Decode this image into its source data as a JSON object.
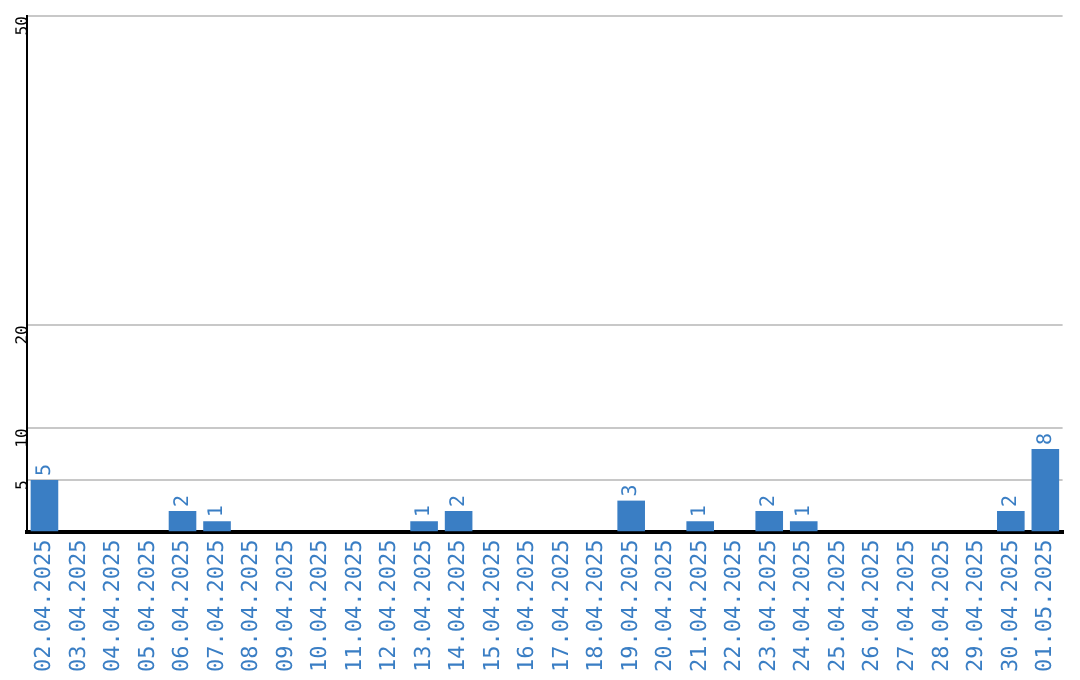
{
  "chart_data": {
    "type": "bar",
    "categories": [
      "02.04.2025",
      "03.04.2025",
      "04.04.2025",
      "05.04.2025",
      "06.04.2025",
      "07.04.2025",
      "08.04.2025",
      "09.04.2025",
      "10.04.2025",
      "11.04.2025",
      "12.04.2025",
      "13.04.2025",
      "14.04.2025",
      "15.04.2025",
      "16.04.2025",
      "17.04.2025",
      "18.04.2025",
      "19.04.2025",
      "20.04.2025",
      "21.04.2025",
      "22.04.2025",
      "23.04.2025",
      "24.04.2025",
      "25.04.2025",
      "26.04.2025",
      "27.04.2025",
      "28.04.2025",
      "29.04.2025",
      "30.04.2025",
      "01.05.2025"
    ],
    "values": [
      5,
      0,
      0,
      0,
      2,
      1,
      0,
      0,
      0,
      0,
      0,
      1,
      2,
      0,
      0,
      0,
      0,
      3,
      0,
      1,
      0,
      2,
      1,
      0,
      0,
      0,
      0,
      0,
      2,
      8
    ],
    "value_labels": [
      "5",
      null,
      null,
      null,
      "2",
      "1",
      null,
      null,
      null,
      null,
      null,
      "1",
      "2",
      null,
      null,
      null,
      null,
      "3",
      null,
      "1",
      null,
      "2",
      "1",
      null,
      null,
      null,
      null,
      null,
      "2",
      "8"
    ],
    "color": "#3a7ec4",
    "ylim": [
      0,
      50
    ],
    "yticks": [
      5,
      10,
      20,
      50
    ],
    "grid": "y",
    "legend": false
  }
}
